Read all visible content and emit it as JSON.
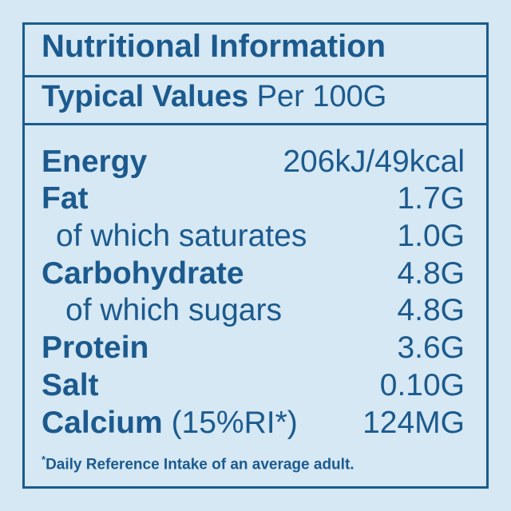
{
  "header": {
    "title": "Nutritional Information",
    "subtitle_bold": "Typical Values",
    "subtitle_rest": "Per 100G"
  },
  "rows": [
    {
      "label": "Energy",
      "value": "206kJ/49kcal"
    },
    {
      "label": "Fat",
      "value": "1.7G"
    },
    {
      "label": "of which saturates",
      "value": "1.0G"
    },
    {
      "label": "Carbohydrate",
      "value": "4.8G"
    },
    {
      "label": "of which sugars",
      "value": "4.8G"
    },
    {
      "label": "Protein",
      "value": "3.6G"
    },
    {
      "label": "Salt",
      "value": "0.10G"
    },
    {
      "label": "Calcium",
      "note": "(15%RI*)",
      "value": "124MG"
    }
  ],
  "footnote": {
    "mark": "*",
    "text": "Daily Reference Intake of an average adult."
  }
}
